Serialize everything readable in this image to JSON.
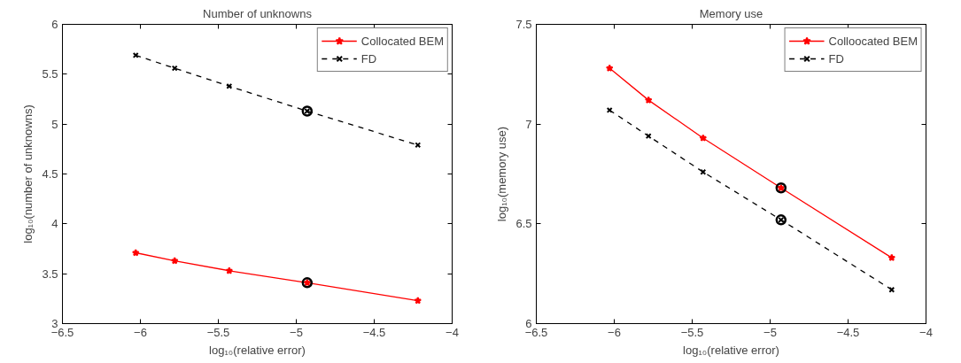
{
  "chart_data": [
    {
      "type": "line",
      "title": "Number of unknowns",
      "xlabel": "log₁₀(relative error)",
      "ylabel": "log₁₀(number of unknowns)",
      "xlim": [
        -6.5,
        -4
      ],
      "xticks": [
        -6.5,
        -6,
        -5.5,
        -5,
        -4.5,
        -4
      ],
      "ylim": [
        3,
        6
      ],
      "yticks": [
        3,
        3.5,
        4,
        4.5,
        5,
        5.5,
        6
      ],
      "grid": false,
      "legend": "top right",
      "series": [
        {
          "name": "Collocated BEM",
          "color": "#ff0000",
          "marker": "star",
          "line_style": "solid",
          "x": [
            -6.03,
            -5.78,
            -5.43,
            -4.93,
            -4.22
          ],
          "values": [
            3.71,
            3.63,
            3.53,
            3.41,
            3.23
          ]
        },
        {
          "name": "FD",
          "color": "#000000",
          "marker": "cross",
          "line_style": "dashed",
          "x": [
            -6.03,
            -5.78,
            -5.43,
            -4.93,
            -4.22
          ],
          "values": [
            5.69,
            5.56,
            5.38,
            5.13,
            4.79
          ]
        },
        {
          "type": "scatter",
          "color": "#000000",
          "marker": "circle",
          "x": [
            -4.93,
            -4.93
          ],
          "values": [
            3.41,
            5.13
          ]
        }
      ]
    },
    {
      "type": "line",
      "title": "Memory use",
      "xlabel": "log₁₀(relative error)",
      "ylabel": "log₁₀(memory use)",
      "xlim": [
        -6.5,
        -4
      ],
      "xticks": [
        -6.5,
        -6,
        -5.5,
        -5,
        -4.5,
        -4
      ],
      "ylim": [
        6,
        7.5
      ],
      "yticks": [
        6,
        6.5,
        7,
        7.5
      ],
      "grid": false,
      "legend": "top right",
      "series": [
        {
          "name": "Colloocated BEM",
          "color": "#ff0000",
          "marker": "star",
          "line_style": "solid",
          "x": [
            -6.03,
            -5.78,
            -5.43,
            -4.93,
            -4.22
          ],
          "values": [
            7.28,
            7.12,
            6.93,
            6.68,
            6.33
          ]
        },
        {
          "name": "FD",
          "color": "#000000",
          "marker": "cross",
          "line_style": "dashed",
          "x": [
            -6.03,
            -5.78,
            -5.43,
            -4.93,
            -4.22
          ],
          "values": [
            7.07,
            6.94,
            6.76,
            6.52,
            6.17
          ]
        },
        {
          "type": "scatter",
          "color": "#000000",
          "marker": "circle",
          "x": [
            -4.93,
            -4.93
          ],
          "values": [
            6.68,
            6.52
          ]
        }
      ]
    }
  ]
}
